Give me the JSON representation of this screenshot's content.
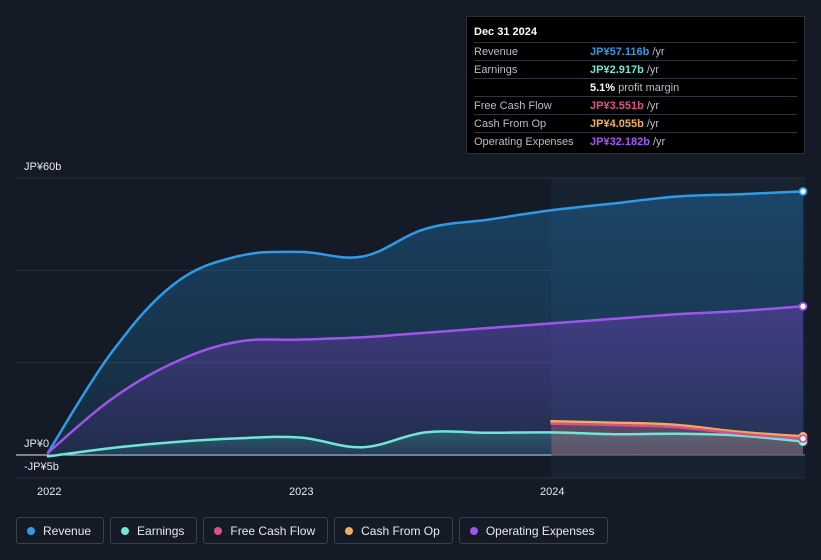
{
  "tooltip": {
    "date": "Dec 31 2024",
    "rows": [
      {
        "label": "Revenue",
        "value": "JP¥57.116b",
        "unit": "/yr",
        "color": "#2f9be6"
      },
      {
        "label": "Earnings",
        "value": "JP¥2.917b",
        "unit": "/yr",
        "color": "#6ee7d8"
      },
      {
        "label": "",
        "value": "5.1%",
        "unit": "profit margin",
        "color": "#ffffff"
      },
      {
        "label": "Free Cash Flow",
        "value": "JP¥3.551b",
        "unit": "/yr",
        "color": "#e0528f"
      },
      {
        "label": "Cash From Op",
        "value": "JP¥4.055b",
        "unit": "/yr",
        "color": "#f0b062"
      },
      {
        "label": "Operating Expenses",
        "value": "JP¥32.182b",
        "unit": "/yr",
        "color": "#a855f7"
      }
    ]
  },
  "legend": [
    {
      "label": "Revenue",
      "color": "#2f9be6"
    },
    {
      "label": "Earnings",
      "color": "#6ee7d8"
    },
    {
      "label": "Free Cash Flow",
      "color": "#d9518b"
    },
    {
      "label": "Cash From Op",
      "color": "#efae5e"
    },
    {
      "label": "Operating Expenses",
      "color": "#9f55ec"
    }
  ],
  "chart_data": {
    "type": "area",
    "y_tick_labels": [
      "JP¥60b",
      "JP¥0",
      "-JP¥5b"
    ],
    "y_ticks": [
      60,
      0,
      -5
    ],
    "ylim": [
      -5,
      60
    ],
    "x_tick_labels": [
      "2022",
      "2023",
      "2024"
    ],
    "x_ticks": [
      2022.0,
      2023.0,
      2024.0
    ],
    "xlim": [
      2022.0,
      2025.0
    ],
    "highlight_from": 2024.0,
    "series": [
      {
        "name": "Revenue",
        "color": "#2f9be6",
        "x": [
          2022.0,
          2022.25,
          2022.5,
          2022.75,
          2023.0,
          2023.25,
          2023.5,
          2023.75,
          2024.0,
          2024.25,
          2024.5,
          2024.75,
          2025.0
        ],
        "y": [
          0.5,
          22,
          37,
          43,
          44,
          43,
          49,
          51,
          53,
          54.5,
          56,
          56.5,
          57.1
        ]
      },
      {
        "name": "Operating Expenses",
        "color": "#9f55ec",
        "x": [
          2022.0,
          2022.25,
          2022.5,
          2022.75,
          2023.0,
          2023.25,
          2023.5,
          2023.75,
          2024.0,
          2024.25,
          2024.5,
          2024.75,
          2025.0
        ],
        "y": [
          0.5,
          12,
          20,
          24.5,
          25,
          25.5,
          26.5,
          27.5,
          28.5,
          29.5,
          30.5,
          31.2,
          32.2
        ]
      },
      {
        "name": "Earnings",
        "color": "#6ee7d8",
        "x": [
          2022.0,
          2022.25,
          2022.5,
          2022.75,
          2023.0,
          2023.25,
          2023.5,
          2023.75,
          2024.0,
          2024.25,
          2024.5,
          2024.75,
          2025.0
        ],
        "y": [
          -0.3,
          1.5,
          2.8,
          3.6,
          3.8,
          1.7,
          4.9,
          4.8,
          4.9,
          4.5,
          4.6,
          4.2,
          2.9
        ]
      },
      {
        "name": "Cash From Op",
        "color": "#efae5e",
        "x": [
          2024.0,
          2024.25,
          2024.5,
          2024.75,
          2025.0
        ],
        "y": [
          7.3,
          7.0,
          6.5,
          5.0,
          4.05
        ]
      },
      {
        "name": "Free Cash Flow",
        "color": "#d9518b",
        "x": [
          2024.0,
          2024.25,
          2024.5,
          2024.75,
          2025.0
        ],
        "y": [
          6.8,
          6.5,
          6.0,
          4.6,
          3.55
        ]
      }
    ]
  }
}
